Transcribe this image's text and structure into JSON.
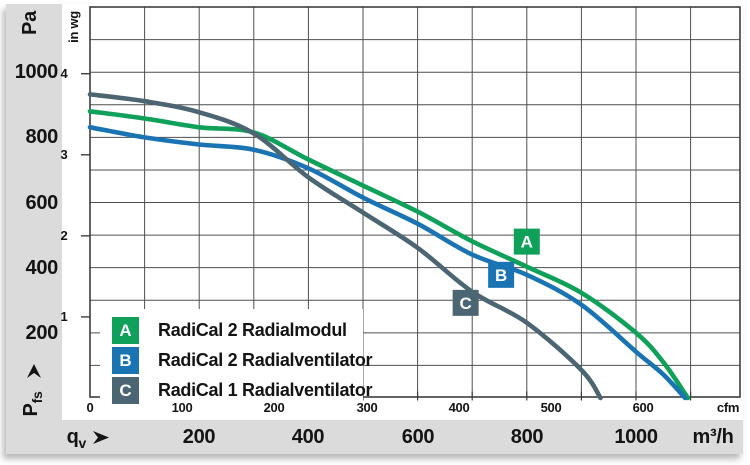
{
  "labels": {
    "pa_unit": "Pa",
    "inwg_unit": "in wg",
    "cfm_unit": "cfm",
    "m3h_unit": "m³/h",
    "qv": {
      "base": "q",
      "sub": "v"
    },
    "pfs": {
      "base": "P",
      "sub": "fs"
    }
  },
  "colors": {
    "panel_gray": "#dbdbdb",
    "grid": "#4f4f4f",
    "frame": "#3d3d3d",
    "text": "#141414",
    "legend_bg": "#ffffff",
    "series_a_green": "#0fa05a",
    "series_b_blue": "#1a74b4",
    "series_c_slate": "#4b6572"
  },
  "chart_data": {
    "type": "line",
    "title": "",
    "x_axis": {
      "unit_primary": "m³/h",
      "unit_secondary": "cfm",
      "m3h_tick_labels": [
        200,
        400,
        600,
        800,
        1000
      ],
      "cfm_tick_labels": [
        0,
        100,
        200,
        300,
        400,
        500,
        600
      ],
      "grid_interval_m3h": 100,
      "range_m3h": [
        0,
        1190
      ]
    },
    "y_axis": {
      "unit_primary": "Pa",
      "unit_secondary": "in wg",
      "pa_tick_labels": [
        200,
        400,
        600,
        800,
        1000
      ],
      "inwg_tick_labels": [
        1,
        2,
        3,
        4
      ],
      "grid_interval_pa": 100,
      "range_pa": [
        0,
        1200
      ]
    },
    "series": [
      {
        "id": "A",
        "name": "RadiCal 2 Radialmodul",
        "color": "#0fa05a",
        "marker_at_m3h_pa": [
          800,
          480
        ],
        "points_m3h_pa": [
          [
            0,
            880
          ],
          [
            100,
            858
          ],
          [
            200,
            831
          ],
          [
            300,
            815
          ],
          [
            400,
            732
          ],
          [
            500,
            652
          ],
          [
            600,
            572
          ],
          [
            700,
            481
          ],
          [
            800,
            403
          ],
          [
            900,
            323
          ],
          [
            1000,
            200
          ],
          [
            1050,
            110
          ],
          [
            1095,
            0
          ]
        ]
      },
      {
        "id": "B",
        "name": "RadiCal 2 Radialventilator",
        "color": "#1a74b4",
        "marker_at_m3h_pa": [
          753,
          378
        ],
        "points_m3h_pa": [
          [
            0,
            831
          ],
          [
            100,
            800
          ],
          [
            200,
            778
          ],
          [
            300,
            762
          ],
          [
            400,
            705
          ],
          [
            500,
            615
          ],
          [
            600,
            535
          ],
          [
            700,
            440
          ],
          [
            800,
            378
          ],
          [
            900,
            286
          ],
          [
            1000,
            142
          ],
          [
            1050,
            72
          ],
          [
            1090,
            0
          ]
        ]
      },
      {
        "id": "C",
        "name": "RadiCal 1 Radialventilator",
        "color": "#4b6572",
        "marker_at_m3h_pa": [
          688,
          292
        ],
        "points_m3h_pa": [
          [
            0,
            932
          ],
          [
            100,
            911
          ],
          [
            200,
            877
          ],
          [
            300,
            812
          ],
          [
            400,
            677
          ],
          [
            500,
            569
          ],
          [
            600,
            461
          ],
          [
            700,
            326
          ],
          [
            800,
            231
          ],
          [
            900,
            86
          ],
          [
            935,
            0
          ]
        ]
      }
    ]
  }
}
